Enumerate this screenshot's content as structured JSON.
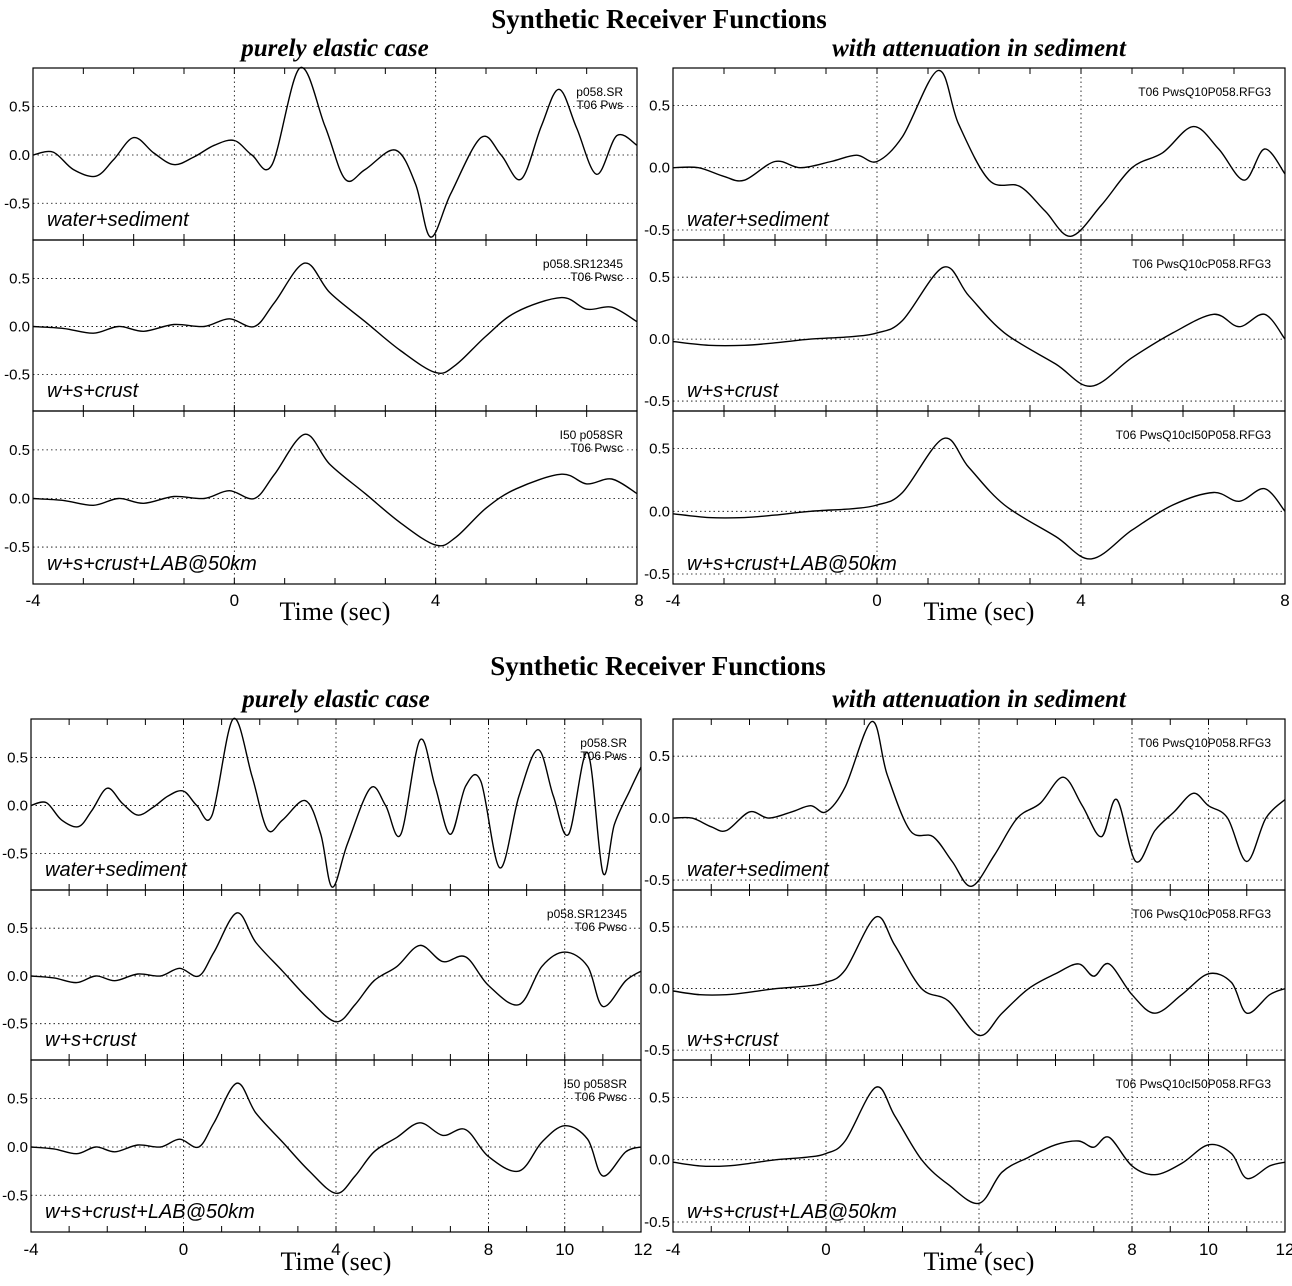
{
  "figures": [
    {
      "title": "Synthetic Receiver Functions",
      "columns": [
        {
          "title": "purely elastic case",
          "xlabel": "Time (sec)",
          "xlim": [
            -4,
            8
          ],
          "xticks": [
            -4,
            0,
            4,
            8
          ],
          "panels": [
            {
              "label": "water+sediment",
              "tag": [
                "p058.SR",
                "T06 Pws"
              ],
              "ylim": [
                -0.88,
                0.9
              ],
              "yticks": [
                "0.5",
                "0.0",
                "-0.5"
              ],
              "trace_id": 0
            },
            {
              "label": "w+s+crust",
              "tag": [
                "p058.SR12345",
                "T06 Pwsc"
              ],
              "ylim": [
                -0.88,
                0.9
              ],
              "yticks": [
                "0.5",
                "0.0",
                "-0.5"
              ],
              "trace_id": 1
            },
            {
              "label": "w+s+crust+LAB@50km",
              "tag": [
                "I50 p058SR",
                "T06 Pwsc"
              ],
              "ylim": [
                -0.88,
                0.9
              ],
              "yticks": [
                "0.5",
                "0.0",
                "-0.5"
              ],
              "trace_id": 2
            }
          ]
        },
        {
          "title": "with attenuation in sediment",
          "xlabel": "Time (sec)",
          "xlim": [
            -4,
            8
          ],
          "xticks": [
            -4,
            0,
            4,
            8
          ],
          "panels": [
            {
              "label": "water+sediment",
              "tag": [
                "T06 PwsQ10P058.RFG3"
              ],
              "ylim": [
                -0.58,
                0.8
              ],
              "yticks": [
                "0.5",
                "0.0",
                "-0.5"
              ],
              "trace_id": 3
            },
            {
              "label": "w+s+crust",
              "tag": [
                "T06 PwsQ10cP058.RFG3"
              ],
              "ylim": [
                -0.58,
                0.8
              ],
              "yticks": [
                "0.5",
                "0.0",
                "-0.5"
              ],
              "trace_id": 4
            },
            {
              "label": "w+s+crust+LAB@50km",
              "tag": [
                "T06 PwsQ10cI50P058.RFG3"
              ],
              "ylim": [
                -0.58,
                0.8
              ],
              "yticks": [
                "0.5",
                "0.0",
                "-0.5"
              ],
              "trace_id": 5
            }
          ]
        }
      ]
    },
    {
      "title": "Synthetic Receiver Functions",
      "columns": [
        {
          "title": "purely elastic case",
          "xlabel": "Time (sec)",
          "xlim": [
            -4,
            12
          ],
          "xticks": [
            -4,
            0,
            4,
            8,
            10,
            12
          ],
          "panels": [
            {
              "label": "water+sediment",
              "tag": [
                "p058.SR",
                "T06 Pws"
              ],
              "ylim": [
                -0.88,
                0.9
              ],
              "yticks": [
                "0.5",
                "0.0",
                "-0.5"
              ],
              "trace_id": 6
            },
            {
              "label": "w+s+crust",
              "tag": [
                "p058.SR12345",
                "T06 Pwsc"
              ],
              "ylim": [
                -0.88,
                0.9
              ],
              "yticks": [
                "0.5",
                "0.0",
                "-0.5"
              ],
              "trace_id": 7
            },
            {
              "label": "w+s+crust+LAB@50km",
              "tag": [
                "I50 p058SR",
                "T06 Pwsc"
              ],
              "ylim": [
                -0.88,
                0.9
              ],
              "yticks": [
                "0.5",
                "0.0",
                "-0.5"
              ],
              "trace_id": 8
            }
          ]
        },
        {
          "title": "with attenuation in sediment",
          "xlabel": "Time (sec)",
          "xlim": [
            -4,
            12
          ],
          "xticks": [
            -4,
            0,
            4,
            8,
            10,
            12
          ],
          "panels": [
            {
              "label": "water+sediment",
              "tag": [
                "T06 PwsQ10P058.RFG3"
              ],
              "ylim": [
                -0.58,
                0.8
              ],
              "yticks": [
                "0.5",
                "0.0",
                "-0.5"
              ],
              "trace_id": 9
            },
            {
              "label": "w+s+crust",
              "tag": [
                "T06 PwsQ10cP058.RFG3"
              ],
              "ylim": [
                -0.58,
                0.8
              ],
              "yticks": [
                "0.5",
                "0.0",
                "-0.5"
              ],
              "trace_id": 10
            },
            {
              "label": "w+s+crust+LAB@50km",
              "tag": [
                "T06 PwsQ10cI50P058.RFG3"
              ],
              "ylim": [
                -0.58,
                0.8
              ],
              "yticks": [
                "0.5",
                "0.0",
                "-0.5"
              ],
              "trace_id": 11
            }
          ]
        }
      ]
    }
  ],
  "chart_data": [
    {
      "type": "line",
      "title": "purely elastic case — water+sediment",
      "xlabel": "Time (sec)",
      "xlim": [
        -4,
        8
      ],
      "ylim": [
        -0.88,
        0.9
      ],
      "grid": true,
      "x": [
        -4,
        -3.6,
        -3.2,
        -2.75,
        -2.4,
        -2,
        -1.6,
        -1.2,
        -0.8,
        -0.4,
        0,
        0.35,
        0.75,
        1.3,
        1.8,
        2.2,
        2.6,
        3.2,
        3.6,
        3.9,
        4.3,
        4.9,
        5.3,
        5.7,
        6.1,
        6.45,
        6.8,
        7.2,
        7.6,
        8
      ],
      "y": [
        0.0,
        0.03,
        -0.15,
        -0.22,
        -0.05,
        0.18,
        0.02,
        -0.1,
        -0.02,
        0.1,
        0.15,
        0.0,
        -0.1,
        0.9,
        0.3,
        -0.25,
        -0.15,
        0.05,
        -0.3,
        -0.85,
        -0.4,
        0.18,
        0.0,
        -0.25,
        0.3,
        0.68,
        0.28,
        -0.2,
        0.2,
        0.1
      ]
    },
    {
      "type": "line",
      "title": "purely elastic case — w+s+crust",
      "xlabel": "Time (sec)",
      "xlim": [
        -4,
        8
      ],
      "ylim": [
        -0.88,
        0.9
      ],
      "grid": true,
      "x": [
        -4,
        -3.4,
        -2.8,
        -2.3,
        -1.8,
        -1.2,
        -0.6,
        -0.1,
        0.4,
        0.8,
        1.4,
        1.9,
        2.6,
        3.3,
        4.0,
        4.4,
        5.0,
        5.6,
        6.5,
        7.0,
        7.5,
        8
      ],
      "y": [
        0.0,
        -0.02,
        -0.07,
        0.0,
        -0.05,
        0.02,
        0.0,
        0.08,
        0.0,
        0.25,
        0.66,
        0.35,
        0.05,
        -0.25,
        -0.48,
        -0.4,
        -0.1,
        0.15,
        0.3,
        0.18,
        0.2,
        0.05
      ]
    },
    {
      "type": "line",
      "title": "purely elastic case — w+s+crust+LAB@50km",
      "xlabel": "Time (sec)",
      "xlim": [
        -4,
        8
      ],
      "ylim": [
        -0.88,
        0.9
      ],
      "grid": true,
      "x": [
        -4,
        -3.4,
        -2.8,
        -2.3,
        -1.8,
        -1.2,
        -0.6,
        -0.1,
        0.4,
        0.8,
        1.4,
        1.9,
        2.6,
        3.3,
        4.0,
        4.4,
        5.0,
        5.6,
        6.5,
        7.0,
        7.5,
        8
      ],
      "y": [
        0.0,
        -0.02,
        -0.07,
        0.0,
        -0.05,
        0.02,
        0.0,
        0.08,
        0.0,
        0.25,
        0.66,
        0.35,
        0.05,
        -0.25,
        -0.48,
        -0.4,
        -0.1,
        0.1,
        0.25,
        0.15,
        0.2,
        0.05
      ]
    },
    {
      "type": "line",
      "title": "with attenuation in sediment — water+sediment",
      "xlabel": "Time (sec)",
      "xlim": [
        -4,
        8
      ],
      "ylim": [
        -0.58,
        0.8
      ],
      "grid": true,
      "x": [
        -4,
        -3.5,
        -3.0,
        -2.6,
        -2.0,
        -1.5,
        -0.9,
        -0.4,
        0,
        0.5,
        1.2,
        1.6,
        2.2,
        2.8,
        3.3,
        3.8,
        4.4,
        5.0,
        5.6,
        6.2,
        6.7,
        7.2,
        7.6,
        8
      ],
      "y": [
        0.0,
        0.0,
        -0.07,
        -0.1,
        0.05,
        0.0,
        0.05,
        0.1,
        0.05,
        0.25,
        0.78,
        0.35,
        -0.1,
        -0.15,
        -0.35,
        -0.55,
        -0.3,
        0.0,
        0.12,
        0.33,
        0.15,
        -0.1,
        0.15,
        -0.05
      ]
    },
    {
      "type": "line",
      "title": "with attenuation in sediment — w+s+crust",
      "xlabel": "Time (sec)",
      "xlim": [
        -4,
        8
      ],
      "ylim": [
        -0.58,
        0.8
      ],
      "grid": true,
      "x": [
        -4,
        -3.3,
        -2.6,
        -2.0,
        -1.3,
        -0.5,
        0,
        0.5,
        1.3,
        1.8,
        2.5,
        3.5,
        4.2,
        5.0,
        5.8,
        6.6,
        7.1,
        7.6,
        8
      ],
      "y": [
        -0.02,
        -0.05,
        -0.05,
        -0.03,
        0.0,
        0.02,
        0.05,
        0.15,
        0.58,
        0.35,
        0.05,
        -0.2,
        -0.38,
        -0.15,
        0.05,
        0.2,
        0.1,
        0.2,
        0.0
      ]
    },
    {
      "type": "line",
      "title": "with attenuation in sediment — w+s+crust+LAB@50km",
      "xlabel": "Time (sec)",
      "xlim": [
        -4,
        8
      ],
      "ylim": [
        -0.58,
        0.8
      ],
      "grid": true,
      "x": [
        -4,
        -3.3,
        -2.6,
        -2.0,
        -1.3,
        -0.5,
        0,
        0.5,
        1.3,
        1.8,
        2.5,
        3.5,
        4.2,
        5.0,
        5.8,
        6.6,
        7.1,
        7.6,
        8
      ],
      "y": [
        -0.02,
        -0.05,
        -0.05,
        -0.03,
        0.0,
        0.02,
        0.05,
        0.15,
        0.58,
        0.35,
        0.05,
        -0.2,
        -0.38,
        -0.15,
        0.05,
        0.15,
        0.08,
        0.18,
        0.0
      ]
    },
    {
      "type": "line",
      "title": "purely elastic case — water+sediment",
      "xlabel": "Time (sec)",
      "xlim": [
        -4,
        12
      ],
      "ylim": [
        -0.88,
        0.9
      ],
      "grid": true,
      "x": [
        -4,
        -3.6,
        -3.2,
        -2.75,
        -2.4,
        -2,
        -1.6,
        -1.2,
        -0.8,
        -0.4,
        0,
        0.35,
        0.75,
        1.3,
        1.8,
        2.2,
        2.6,
        3.2,
        3.6,
        3.9,
        4.3,
        4.9,
        5.3,
        5.7,
        6.2,
        6.6,
        7.0,
        7.4,
        7.8,
        8.3,
        8.8,
        9.3,
        9.7,
        10.1,
        10.6,
        11.0,
        11.3,
        11.7,
        12
      ],
      "y": [
        0.0,
        0.03,
        -0.15,
        -0.22,
        -0.05,
        0.18,
        0.02,
        -0.1,
        -0.02,
        0.1,
        0.15,
        0.0,
        -0.1,
        0.9,
        0.3,
        -0.25,
        -0.15,
        0.05,
        -0.3,
        -0.85,
        -0.4,
        0.18,
        0.0,
        -0.3,
        0.68,
        0.2,
        -0.3,
        0.2,
        0.25,
        -0.65,
        0.1,
        0.58,
        0.1,
        -0.3,
        0.55,
        -0.7,
        -0.2,
        0.15,
        0.4
      ]
    },
    {
      "type": "line",
      "title": "purely elastic case — w+s+crust",
      "xlabel": "Time (sec)",
      "xlim": [
        -4,
        12
      ],
      "ylim": [
        -0.88,
        0.9
      ],
      "grid": true,
      "x": [
        -4,
        -3.4,
        -2.8,
        -2.3,
        -1.8,
        -1.2,
        -0.6,
        -0.1,
        0.4,
        0.8,
        1.4,
        1.9,
        2.6,
        3.3,
        4.0,
        4.5,
        5.0,
        5.6,
        6.2,
        6.8,
        7.4,
        8.0,
        8.8,
        9.4,
        10.0,
        10.6,
        11.0,
        11.6,
        12
      ],
      "y": [
        0.0,
        -0.02,
        -0.07,
        0.0,
        -0.05,
        0.02,
        0.0,
        0.08,
        0.0,
        0.25,
        0.66,
        0.35,
        0.05,
        -0.25,
        -0.48,
        -0.3,
        -0.05,
        0.1,
        0.32,
        0.15,
        0.2,
        -0.1,
        -0.3,
        0.1,
        0.25,
        0.1,
        -0.32,
        -0.05,
        0.05
      ]
    },
    {
      "type": "line",
      "title": "purely elastic case — w+s+crust+LAB@50km",
      "xlabel": "Time (sec)",
      "xlim": [
        -4,
        12
      ],
      "ylim": [
        -0.88,
        0.9
      ],
      "grid": true,
      "x": [
        -4,
        -3.4,
        -2.8,
        -2.3,
        -1.8,
        -1.2,
        -0.6,
        -0.1,
        0.4,
        0.8,
        1.4,
        1.9,
        2.6,
        3.3,
        4.0,
        4.5,
        5.0,
        5.6,
        6.2,
        6.8,
        7.4,
        8.0,
        8.8,
        9.4,
        10.0,
        10.6,
        11.0,
        11.6,
        12
      ],
      "y": [
        0.0,
        -0.02,
        -0.07,
        0.0,
        -0.05,
        0.02,
        0.0,
        0.08,
        0.0,
        0.25,
        0.66,
        0.35,
        0.05,
        -0.25,
        -0.48,
        -0.3,
        -0.05,
        0.1,
        0.25,
        0.12,
        0.18,
        -0.1,
        -0.25,
        0.05,
        0.22,
        0.08,
        -0.3,
        -0.05,
        0.0
      ]
    },
    {
      "type": "line",
      "title": "with attenuation in sediment — water+sediment",
      "xlabel": "Time (sec)",
      "xlim": [
        -4,
        12
      ],
      "ylim": [
        -0.58,
        0.8
      ],
      "grid": true,
      "x": [
        -4,
        -3.5,
        -3.0,
        -2.6,
        -2.0,
        -1.5,
        -0.9,
        -0.4,
        0,
        0.5,
        1.2,
        1.6,
        2.2,
        2.8,
        3.3,
        3.8,
        4.4,
        5.0,
        5.6,
        6.2,
        6.7,
        7.2,
        7.6,
        8.1,
        8.6,
        9.1,
        9.6,
        10.0,
        10.5,
        11.0,
        11.5,
        12
      ],
      "y": [
        0.0,
        0.0,
        -0.07,
        -0.1,
        0.05,
        0.0,
        0.05,
        0.1,
        0.05,
        0.25,
        0.78,
        0.35,
        -0.1,
        -0.15,
        -0.35,
        -0.55,
        -0.3,
        0.0,
        0.12,
        0.33,
        0.1,
        -0.15,
        0.15,
        -0.35,
        -0.1,
        0.05,
        0.2,
        0.1,
        0.0,
        -0.35,
        0.0,
        0.15
      ]
    },
    {
      "type": "line",
      "title": "with attenuation in sediment — w+s+crust",
      "xlabel": "Time (sec)",
      "xlim": [
        -4,
        12
      ],
      "ylim": [
        -0.58,
        0.8
      ],
      "grid": true,
      "x": [
        -4,
        -3.3,
        -2.6,
        -2.0,
        -1.3,
        -0.5,
        0,
        0.5,
        1.3,
        1.8,
        2.5,
        3.2,
        4.0,
        4.6,
        5.3,
        6.0,
        6.6,
        7.0,
        7.4,
        8.0,
        8.6,
        9.3,
        10.0,
        10.6,
        11.0,
        11.6,
        12
      ],
      "y": [
        -0.02,
        -0.05,
        -0.05,
        -0.03,
        0.0,
        0.02,
        0.05,
        0.15,
        0.58,
        0.35,
        0.0,
        -0.1,
        -0.38,
        -0.2,
        0.0,
        0.12,
        0.2,
        0.1,
        0.2,
        -0.05,
        -0.2,
        -0.05,
        0.12,
        0.05,
        -0.2,
        -0.05,
        0.0
      ]
    },
    {
      "type": "line",
      "title": "with attenuation in sediment — w+s+crust+LAB@50km",
      "xlabel": "Time (sec)",
      "xlim": [
        -4,
        12
      ],
      "ylim": [
        -0.58,
        0.8
      ],
      "grid": true,
      "x": [
        -4,
        -3.3,
        -2.6,
        -2.0,
        -1.3,
        -0.5,
        0,
        0.5,
        1.3,
        1.8,
        2.5,
        3.2,
        4.0,
        4.6,
        5.3,
        6.0,
        6.6,
        7.0,
        7.4,
        8.0,
        8.6,
        9.3,
        10.0,
        10.6,
        11.0,
        11.6,
        12
      ],
      "y": [
        -0.02,
        -0.05,
        -0.05,
        -0.03,
        0.0,
        0.02,
        0.05,
        0.15,
        0.58,
        0.35,
        0.0,
        -0.2,
        -0.35,
        -0.1,
        0.02,
        0.12,
        0.15,
        0.1,
        0.18,
        -0.05,
        -0.12,
        -0.03,
        0.12,
        0.05,
        -0.15,
        -0.05,
        -0.02
      ]
    }
  ]
}
